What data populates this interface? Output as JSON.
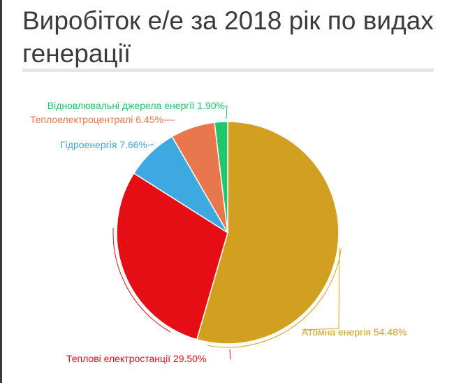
{
  "chart_data": {
    "type": "pie",
    "title": "Виробіток е/е за 2018 рік по видах генерації",
    "slices": [
      {
        "name": "Атомна енергія",
        "value": 54.48,
        "label": "Атомна енергія 54.48%",
        "color": "#d1a020"
      },
      {
        "name": "Теплові електростанції",
        "value": 29.5,
        "label": "Теплові електростанції 29.50%",
        "color": "#e50e14"
      },
      {
        "name": "Гідроенергія",
        "value": 7.66,
        "label": "Гідроенергія 7.66%",
        "color": "#3ea8e0"
      },
      {
        "name": "Теплоелектроцентралі",
        "value": 6.45,
        "label": "Теплоелектроцентралі 6.45%",
        "color": "#e8774d"
      },
      {
        "name": "Відновлювальні джерела енергії",
        "value": 1.9,
        "label": "Відновлювальні джерела енергії 1.90%",
        "color": "#1fc66a"
      }
    ],
    "legend": "none"
  }
}
